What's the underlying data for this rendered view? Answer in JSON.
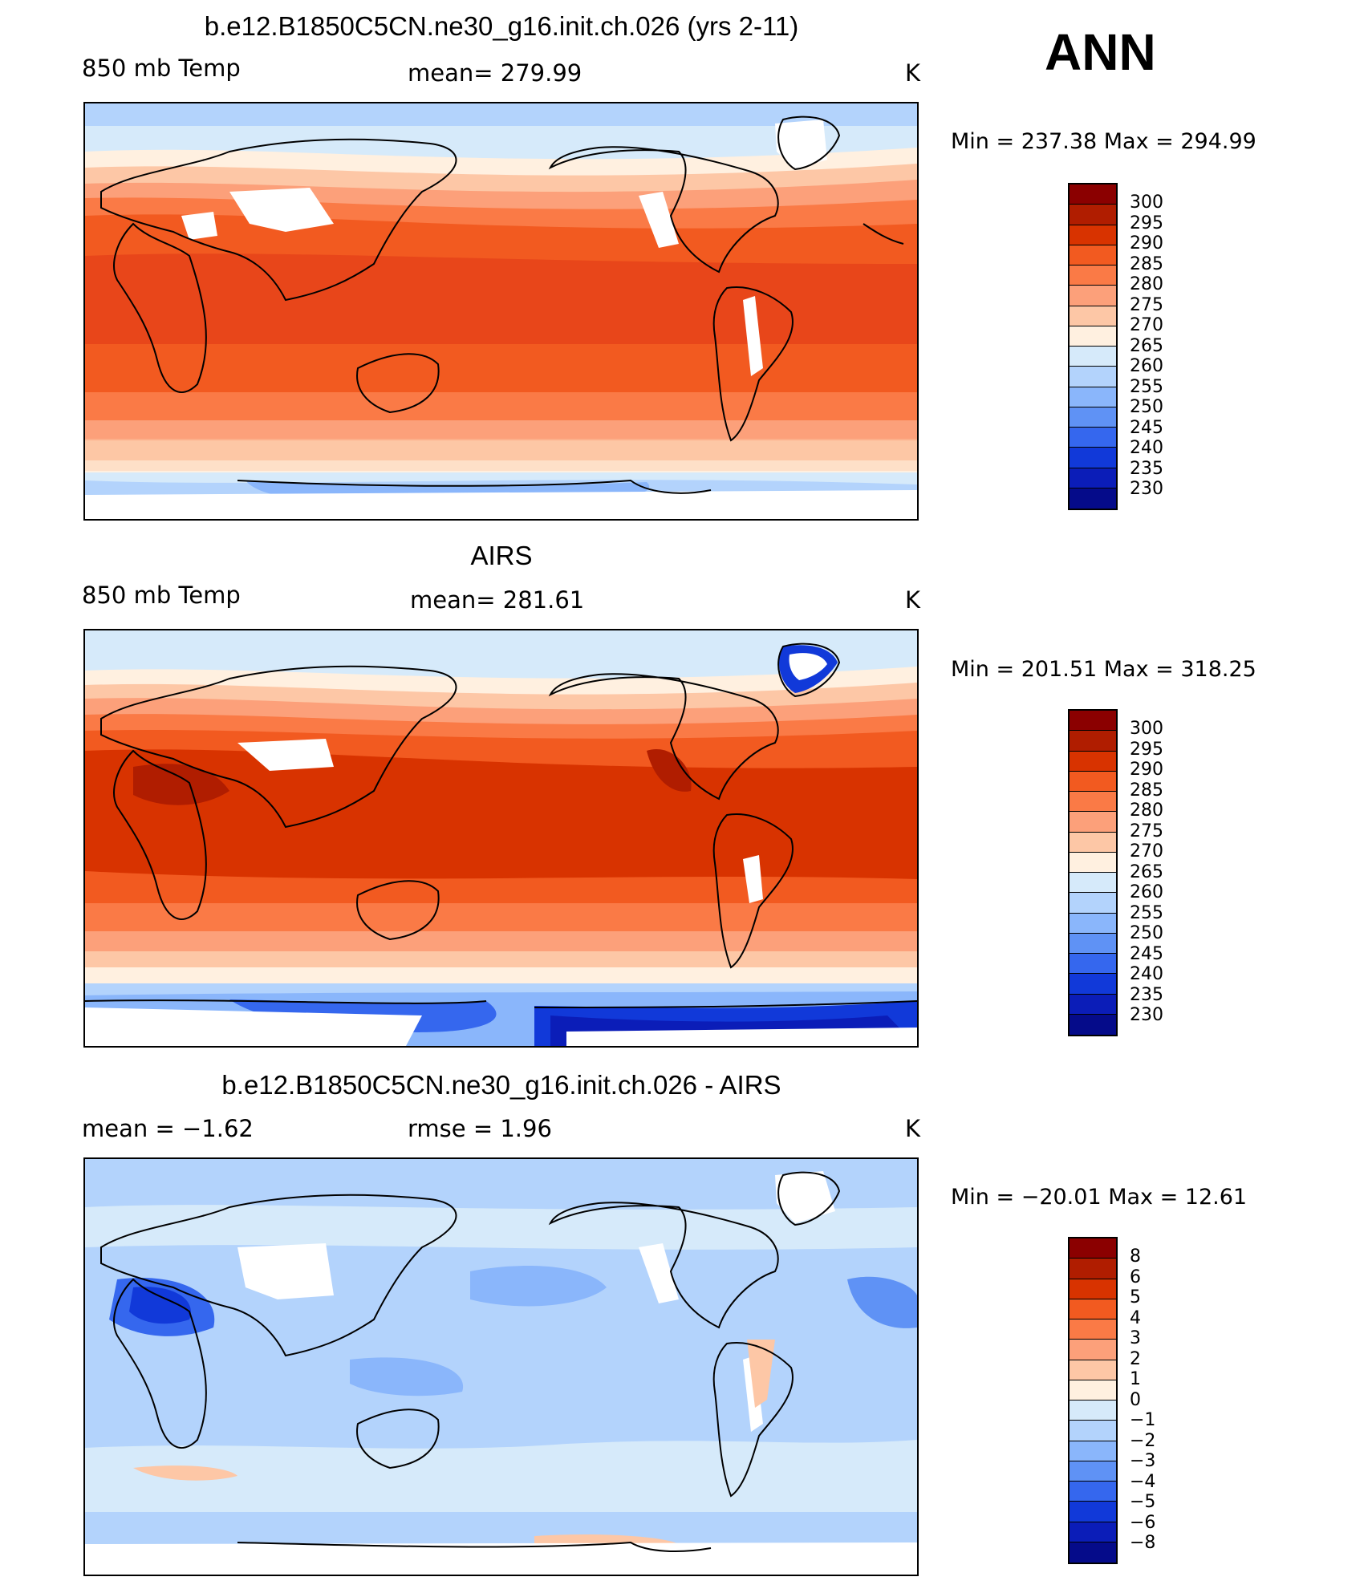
{
  "season": "ANN",
  "panels": [
    {
      "title": "b.e12.B1850C5CN.ne30_g16.init.ch.026 (yrs 2-11)",
      "left_label": "850 mb Temp",
      "center_label": "mean=  279.99",
      "units": "K",
      "minmax": "Min  =  237.38  Max  =  294.99",
      "kind": "model"
    },
    {
      "title": "AIRS",
      "left_label": "850 mb Temp",
      "center_label": "mean=  281.61",
      "units": "K",
      "minmax": "Min  =  201.51  Max  =  318.25",
      "kind": "obs"
    },
    {
      "title": "b.e12.B1850C5CN.ne30_g16.init.ch.026 - AIRS",
      "left_label": "mean  =    −1.62",
      "center_label": "rmse  =     1.96",
      "units": "K",
      "minmax": "Min  =  −20.01  Max  =    12.61",
      "kind": "diff"
    }
  ],
  "colorbars": {
    "temp": {
      "labels": [
        "300",
        "295",
        "290",
        "285",
        "280",
        "275",
        "270",
        "265",
        "260",
        "255",
        "250",
        "245",
        "240",
        "235",
        "230"
      ],
      "colors": [
        "#8b0000",
        "#b01d00",
        "#d83300",
        "#f25a20",
        "#fa7a46",
        "#fca07a",
        "#fdc7a6",
        "#fff0e0",
        "#d6eafa",
        "#b3d3fc",
        "#8ab6fb",
        "#5f92f5",
        "#3567ee",
        "#1139d9",
        "#0b1db8",
        "#050b8a"
      ]
    },
    "diff": {
      "labels": [
        "8",
        "6",
        "5",
        "4",
        "3",
        "2",
        "1",
        "0",
        "−1",
        "−2",
        "−3",
        "−4",
        "−5",
        "−6",
        "−8"
      ],
      "colors": [
        "#8b0000",
        "#b01d00",
        "#d83300",
        "#f25a20",
        "#fa7a46",
        "#fca07a",
        "#fdc7a6",
        "#fff0e0",
        "#d6eafa",
        "#b3d3fc",
        "#8ab6fb",
        "#5f92f5",
        "#3567ee",
        "#1139d9",
        "#0b1db8",
        "#050b8a"
      ]
    }
  }
}
